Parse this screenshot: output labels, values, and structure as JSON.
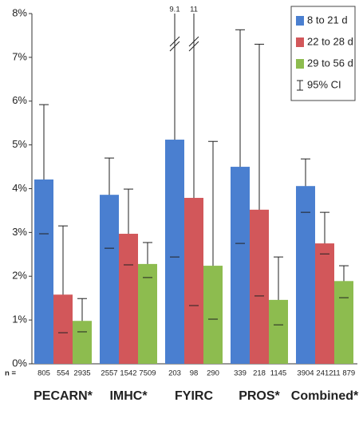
{
  "chart_data": {
    "type": "bar",
    "categories": [
      "PECARN*",
      "IMHC*",
      "FYIRC",
      "PROS*",
      "Combined*"
    ],
    "series": [
      {
        "name": "8 to 21 d",
        "color": "#4a7fd0",
        "values": [
          4.21,
          3.86,
          5.12,
          4.5,
          4.06
        ],
        "ci_low": [
          2.97,
          2.64,
          2.44,
          2.75,
          3.46
        ],
        "ci_high": [
          5.92,
          4.7,
          9.1,
          7.63,
          4.68
        ],
        "n": [
          "805",
          "2557",
          "203",
          "339",
          "3904"
        ]
      },
      {
        "name": "22 to 28 d",
        "color": "#d2575a",
        "values": [
          1.58,
          2.97,
          3.79,
          3.52,
          2.75
        ],
        "ci_low": [
          0.71,
          2.26,
          1.33,
          1.55,
          2.51
        ],
        "ci_high": [
          3.15,
          3.99,
          11,
          7.3,
          3.46
        ],
        "n": [
          "554",
          "1542",
          "98",
          "218",
          "2412"
        ]
      },
      {
        "name": "29 to 56 d",
        "color": "#8dbc4f",
        "values": [
          0.98,
          2.28,
          2.24,
          1.46,
          1.89
        ],
        "ci_low": [
          0.73,
          1.97,
          1.02,
          0.89,
          1.51
        ],
        "ci_high": [
          1.49,
          2.77,
          5.08,
          2.44,
          2.24
        ],
        "n": [
          "2935",
          "7509",
          "290",
          "1145",
          "11 879"
        ]
      }
    ],
    "ci_legend": "95% CI",
    "n_prefix": "n =",
    "ylim": [
      0,
      8
    ],
    "yticks": [
      {
        "value": 0,
        "label": "0%"
      },
      {
        "value": 1,
        "label": "1%"
      },
      {
        "value": 2,
        "label": "2%"
      },
      {
        "value": 3,
        "label": "3%"
      },
      {
        "value": 4,
        "label": "4%"
      },
      {
        "value": 5,
        "label": "5%"
      },
      {
        "value": 6,
        "label": "6%"
      },
      {
        "value": 7,
        "label": "7%"
      },
      {
        "value": 8,
        "label": "8%"
      }
    ],
    "grid": false,
    "legend": "top-right"
  }
}
